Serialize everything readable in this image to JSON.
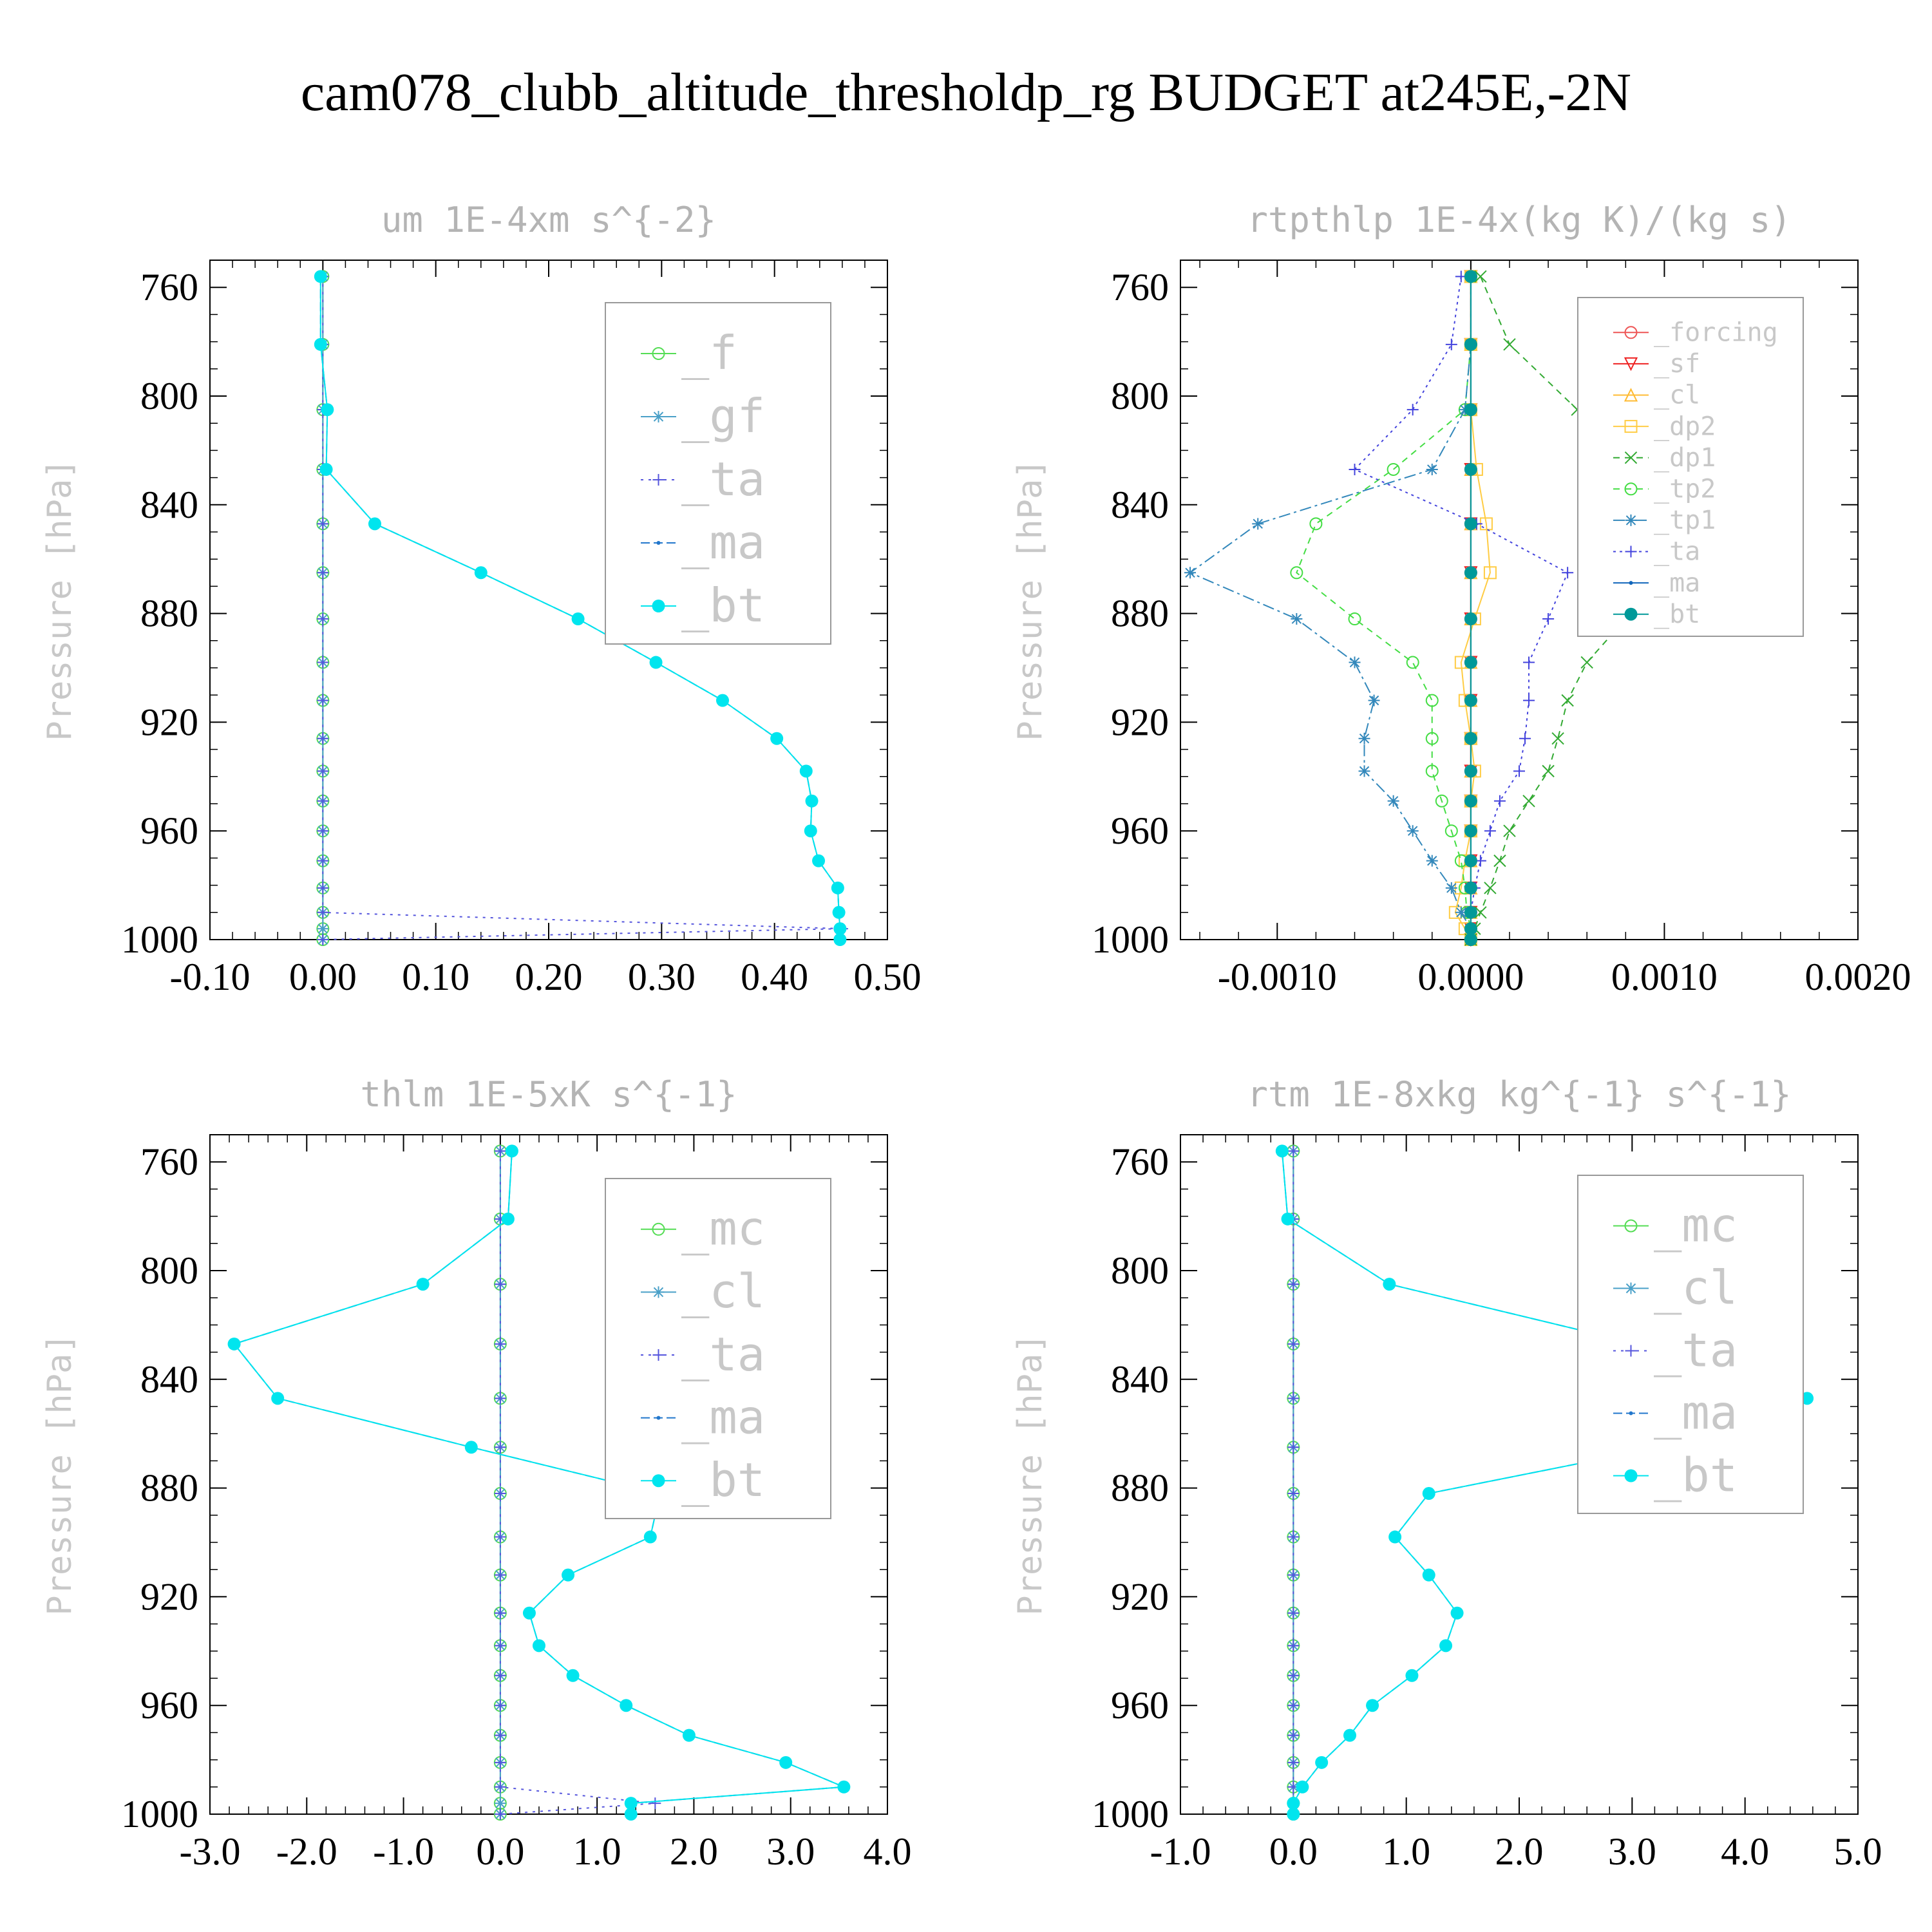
{
  "title": "cam078_clubb_altitude_thresholdp_rg  BUDGET at245E,-2N",
  "chart_data": [
    {
      "type": "line",
      "title": "um  1E-4xm s^{-2}",
      "ylabel": "Pressure [hPa]",
      "xlim": [
        -0.1,
        0.5
      ],
      "ylim": [
        750,
        1000
      ],
      "xticks": [
        "-0.10",
        "0.00",
        "0.10",
        "0.20",
        "0.30",
        "0.40",
        "0.50"
      ],
      "yticks": [
        "760",
        "800",
        "840",
        "880",
        "920",
        "960",
        "1000"
      ],
      "legend_labels": [
        "_f",
        "_gf",
        "_ta",
        "_ma",
        "_bt"
      ],
      "pressure": [
        756,
        781,
        805,
        827,
        847,
        865,
        882,
        898,
        912,
        926,
        938,
        949,
        960,
        971,
        981,
        990,
        996,
        1000
      ],
      "series": [
        {
          "name": "_f",
          "color": "#55dd55",
          "marker": "circle",
          "dash": "",
          "x": [
            0,
            0,
            0,
            0,
            0,
            0,
            0,
            0,
            0,
            0,
            0,
            0,
            0,
            0,
            0,
            0,
            0,
            0
          ]
        },
        {
          "name": "_gf",
          "color": "#4aa0c8",
          "marker": "star",
          "dash": "",
          "x": [
            0,
            0,
            0,
            0,
            0,
            0,
            0,
            0,
            0,
            0,
            0,
            0,
            0,
            0,
            0,
            0,
            0,
            0
          ]
        },
        {
          "name": "_ta",
          "color": "#5555dd",
          "marker": "plus",
          "dash": "4,8",
          "x": [
            0,
            0,
            0,
            0,
            0,
            0,
            0,
            0,
            0,
            0,
            0,
            0,
            0,
            0,
            0,
            0,
            0.46,
            0
          ]
        },
        {
          "name": "_ma",
          "color": "#2277cc",
          "marker": "dot",
          "dash": "14,6",
          "x": [
            -0.002,
            -0.002,
            0.004,
            0.003,
            0.046,
            0.14,
            0.226,
            0.295,
            0.354,
            0.402,
            0.428,
            0.433,
            0.432,
            0.439,
            0.456,
            0.457,
            0.458,
            0.458
          ]
        },
        {
          "name": "_bt",
          "color": "#00e5ee",
          "marker": "filled",
          "dash": "",
          "x": [
            -0.002,
            -0.002,
            0.004,
            0.003,
            0.046,
            0.14,
            0.226,
            0.295,
            0.354,
            0.402,
            0.428,
            0.433,
            0.432,
            0.439,
            0.456,
            0.457,
            0.458,
            0.458
          ]
        }
      ]
    },
    {
      "type": "line",
      "title": "rtpthlp  1E-4x(kg K)/(kg s)",
      "ylabel": "Pressure [hPa]",
      "xlim": [
        -0.0015,
        0.002
      ],
      "ylim": [
        750,
        1000
      ],
      "xticks": [
        "-0.0010",
        "0.0000",
        "0.0010",
        "0.0020"
      ],
      "yticks": [
        "760",
        "800",
        "840",
        "880",
        "920",
        "960",
        "1000"
      ],
      "legend_labels": [
        "_forcing",
        "_sf",
        "_cl",
        "_dp2",
        "_dp1",
        "_tp2",
        "_tp1",
        "_ta",
        "_ma",
        "_bt"
      ],
      "pressure": [
        756,
        781,
        805,
        827,
        847,
        865,
        882,
        898,
        912,
        926,
        938,
        949,
        960,
        971,
        981,
        990,
        996,
        1000
      ],
      "series": [
        {
          "name": "_forcing",
          "color": "#ee5555",
          "marker": "circle",
          "dash": "",
          "x": [
            0,
            0,
            0,
            0,
            0,
            0,
            0,
            0,
            0,
            0,
            0,
            0,
            0,
            0,
            0,
            0,
            0,
            0
          ]
        },
        {
          "name": "_sf",
          "color": "#ee2222",
          "marker": "tri-down",
          "dash": "",
          "x": [
            0,
            0,
            0,
            0,
            0,
            0,
            0,
            0,
            0,
            0,
            0,
            0,
            0,
            0,
            0,
            0,
            0,
            0
          ]
        },
        {
          "name": "_cl",
          "color": "#ffbb33",
          "marker": "tri-up",
          "dash": "",
          "x": [
            0,
            0,
            0,
            0,
            0,
            0,
            0,
            0,
            0,
            0,
            0,
            0,
            0,
            0,
            0,
            0,
            0,
            0
          ]
        },
        {
          "name": "_dp2",
          "color": "#ffcc44",
          "marker": "square",
          "dash": "",
          "x": [
            0,
            0,
            0,
            3e-05,
            8e-05,
            0.0001,
            2e-05,
            -5e-05,
            -3e-05,
            0,
            2e-05,
            0,
            0,
            -3e-05,
            -5e-05,
            -8e-05,
            -3e-05,
            0
          ]
        },
        {
          "name": "_dp1",
          "color": "#33aa33",
          "marker": "x",
          "dash": "10,8",
          "x": [
            5e-05,
            0.0002,
            0.00055,
            0.001,
            0.00155,
            0.0015,
            0.0008,
            0.0006,
            0.0005,
            0.00045,
            0.0004,
            0.0003,
            0.0002,
            0.00015,
            0.0001,
            5e-05,
            2e-05,
            0
          ]
        },
        {
          "name": "_tp2",
          "color": "#44dd44",
          "marker": "circle",
          "dash": "10,8",
          "x": [
            0,
            0,
            -3e-05,
            -0.0004,
            -0.0008,
            -0.0009,
            -0.0006,
            -0.0003,
            -0.0002,
            -0.0002,
            -0.0002,
            -0.00015,
            -0.0001,
            -5e-05,
            -3e-05,
            -2e-05,
            0,
            0
          ]
        },
        {
          "name": "_tp1",
          "color": "#3388bb",
          "marker": "star",
          "dash": "18,6,4,6",
          "x": [
            0,
            0,
            -3e-05,
            -0.0002,
            -0.0011,
            -0.00145,
            -0.0009,
            -0.0006,
            -0.0005,
            -0.00055,
            -0.00055,
            -0.0004,
            -0.0003,
            -0.0002,
            -0.0001,
            -5e-05,
            0,
            0
          ]
        },
        {
          "name": "_ta",
          "color": "#4444dd",
          "marker": "plus",
          "dash": "4,6",
          "x": [
            -5e-05,
            -0.0001,
            -0.0003,
            -0.0006,
            3e-05,
            0.0005,
            0.0004,
            0.0003,
            0.0003,
            0.00028,
            0.00025,
            0.00015,
            0.0001,
            5e-05,
            2e-05,
            0,
            0,
            0
          ]
        },
        {
          "name": "_ma",
          "color": "#1166bb",
          "marker": "dot",
          "dash": "",
          "x": [
            0,
            0,
            0,
            0,
            0,
            0,
            0,
            0,
            0,
            0,
            0,
            0,
            0,
            0,
            0,
            0,
            0,
            0
          ]
        },
        {
          "name": "_bt",
          "color": "#009999",
          "marker": "filled",
          "dash": "",
          "x": [
            0,
            0,
            0,
            0,
            0,
            0,
            0,
            0,
            0,
            0,
            0,
            0,
            0,
            0,
            0,
            0,
            0,
            0
          ]
        }
      ]
    },
    {
      "type": "line",
      "title": "thlm  1E-5xK s^{-1}",
      "ylabel": "Pressure [hPa]",
      "xlim": [
        -3.0,
        4.0
      ],
      "ylim": [
        750,
        1000
      ],
      "xticks": [
        "-3.0",
        "-2.0",
        "-1.0",
        "0.0",
        "1.0",
        "2.0",
        "3.0",
        "4.0"
      ],
      "yticks": [
        "760",
        "800",
        "840",
        "880",
        "920",
        "960",
        "1000"
      ],
      "legend_labels": [
        "_mc",
        "_cl",
        "_ta",
        "_ma",
        "_bt"
      ],
      "pressure": [
        756,
        781,
        805,
        827,
        847,
        865,
        882,
        898,
        912,
        926,
        938,
        949,
        960,
        971,
        981,
        990,
        996,
        1000
      ],
      "series": [
        {
          "name": "_mc",
          "color": "#55dd55",
          "marker": "circle",
          "dash": "",
          "x": [
            0,
            0,
            0,
            0,
            0,
            0,
            0,
            0,
            0,
            0,
            0,
            0,
            0,
            0,
            0,
            0,
            0,
            0
          ]
        },
        {
          "name": "_cl",
          "color": "#4aa0c8",
          "marker": "star",
          "dash": "",
          "x": [
            0,
            0,
            0,
            0,
            0,
            0,
            0,
            0,
            0,
            0,
            0,
            0,
            0,
            0,
            0,
            0,
            0,
            0
          ]
        },
        {
          "name": "_ta",
          "color": "#5555dd",
          "marker": "plus",
          "dash": "4,8",
          "x": [
            0,
            0,
            0,
            0,
            0,
            0,
            0,
            0,
            0,
            0,
            0,
            0,
            0,
            0,
            0,
            0,
            1.6,
            0
          ]
        },
        {
          "name": "_ma",
          "color": "#2277cc",
          "marker": "dot",
          "dash": "14,6",
          "x": [
            0.12,
            0.08,
            -0.8,
            -2.75,
            -2.3,
            -0.3,
            1.65,
            1.55,
            0.7,
            0.3,
            0.4,
            0.75,
            1.3,
            1.95,
            2.95,
            3.55,
            1.35,
            1.35
          ]
        },
        {
          "name": "_bt",
          "color": "#00e5ee",
          "marker": "filled",
          "dash": "",
          "x": [
            0.12,
            0.08,
            -0.8,
            -2.75,
            -2.3,
            -0.3,
            1.65,
            1.55,
            0.7,
            0.3,
            0.4,
            0.75,
            1.3,
            1.95,
            2.95,
            3.55,
            1.35,
            1.35
          ]
        }
      ]
    },
    {
      "type": "line",
      "title": "rtm  1E-8xkg kg^{-1} s^{-1}",
      "ylabel": "Pressure [hPa]",
      "xlim": [
        -1.0,
        5.0
      ],
      "ylim": [
        750,
        1000
      ],
      "xticks": [
        "-1.0",
        "0.0",
        "1.0",
        "2.0",
        "3.0",
        "4.0",
        "5.0"
      ],
      "yticks": [
        "760",
        "800",
        "840",
        "880",
        "920",
        "960",
        "1000"
      ],
      "legend_labels": [
        "_mc",
        "_cl",
        "_ta",
        "_ma",
        "_bt"
      ],
      "pressure": [
        756,
        781,
        805,
        827,
        847,
        865,
        882,
        898,
        912,
        926,
        938,
        949,
        960,
        971,
        981,
        990,
        996,
        1000
      ],
      "series": [
        {
          "name": "_mc",
          "color": "#55dd55",
          "marker": "circle",
          "dash": "",
          "x": [
            0,
            0,
            0,
            0,
            0,
            0,
            0,
            0,
            0,
            0,
            0,
            0,
            0,
            0,
            0,
            0,
            0,
            0
          ]
        },
        {
          "name": "_cl",
          "color": "#4aa0c8",
          "marker": "star",
          "dash": "",
          "x": [
            0,
            0,
            0,
            0,
            0,
            0,
            0,
            0,
            0,
            0,
            0,
            0,
            0,
            0,
            0,
            0,
            0,
            0
          ]
        },
        {
          "name": "_ta",
          "color": "#5555dd",
          "marker": "plus",
          "dash": "4,8",
          "x": [
            0,
            0,
            0,
            0,
            0,
            0,
            0,
            0,
            0,
            0,
            0,
            0,
            0,
            0,
            0,
            0,
            0,
            0
          ]
        },
        {
          "name": "_ma",
          "color": "#2277cc",
          "marker": "dot",
          "dash": "14,6",
          "x": [
            -0.1,
            -0.05,
            0.85,
            3.05,
            4.55,
            3.25,
            1.2,
            0.9,
            1.2,
            1.45,
            1.35,
            1.05,
            0.7,
            0.5,
            0.25,
            0.08,
            0,
            0
          ]
        },
        {
          "name": "_bt",
          "color": "#00e5ee",
          "marker": "filled",
          "dash": "",
          "x": [
            -0.1,
            -0.05,
            0.85,
            3.05,
            4.55,
            3.25,
            1.2,
            0.9,
            1.2,
            1.45,
            1.35,
            1.05,
            0.7,
            0.5,
            0.25,
            0.08,
            0,
            0
          ]
        }
      ]
    }
  ]
}
